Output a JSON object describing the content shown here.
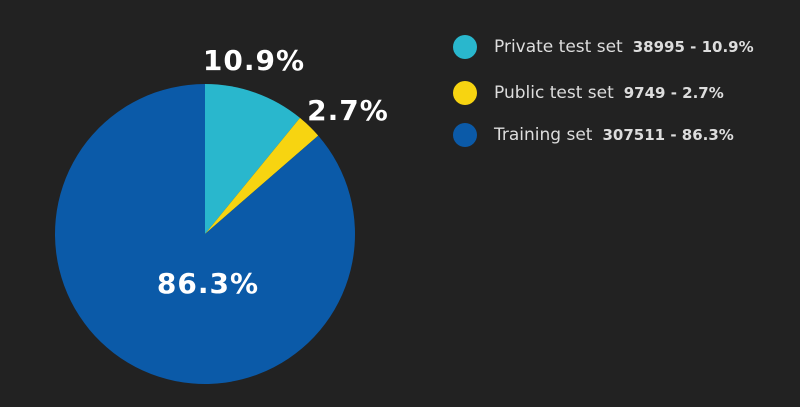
{
  "chart_data": {
    "type": "pie",
    "categories": [
      "Private test set",
      "Public test set",
      "Training set"
    ],
    "values": [
      10.9,
      2.7,
      86.3
    ],
    "value_labels": [
      "10.9%",
      "2.7%",
      "86.3%"
    ],
    "legend_details": [
      "38995 - 10.9%",
      "9749 - 2.7%",
      "307511 - 86.3%"
    ],
    "colors": [
      "#29b7cd",
      "#f7d411",
      "#0b5aa8"
    ],
    "legend": "right"
  }
}
